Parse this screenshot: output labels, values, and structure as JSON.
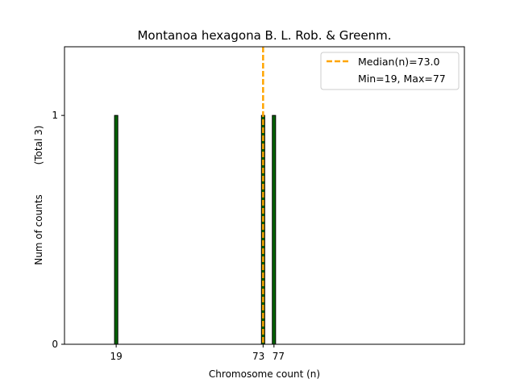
{
  "chart_data": {
    "type": "bar",
    "title": "Montanoa hexagona B. L. Rob. & Greenm.",
    "xlabel": "Chromosome count (n)",
    "ylabel": "Num of counts",
    "ylabel_total": "(Total 3)",
    "x_values": [
      19,
      73,
      77
    ],
    "counts": [
      1,
      1,
      1
    ],
    "xlim": [
      0,
      147
    ],
    "ylim": [
      0,
      1.3
    ],
    "x_ticks": [
      19,
      73,
      77
    ],
    "y_ticks": [
      0,
      1
    ],
    "bar_color": "#006400",
    "bar_edge_color": "#000000",
    "median": 73.0,
    "median_color": "#FFA500",
    "legend": {
      "position": "upper right",
      "entries": [
        "Median(n)=73.0",
        "Min=19, Max=77"
      ]
    }
  }
}
